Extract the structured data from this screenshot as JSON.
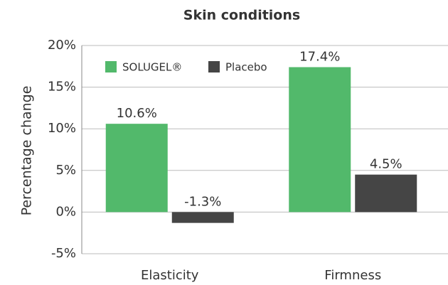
{
  "chart_data": {
    "type": "bar",
    "title": "Skin conditions",
    "y_label": "Percentage change",
    "categories": [
      "Elasticity",
      "Firmness"
    ],
    "series": [
      {
        "name": "SOLUGEL®",
        "color": "#52b96b",
        "values": [
          10.6,
          17.4
        ],
        "value_labels": [
          "10.6%",
          "17.4%"
        ]
      },
      {
        "name": "Placebo",
        "color": "#454545",
        "values": [
          -1.3,
          4.5
        ],
        "value_labels": [
          "-1.3%",
          "4.5%"
        ]
      }
    ],
    "ylim": [
      -5,
      20
    ],
    "yticks": [
      {
        "value": -5,
        "label": "-5%"
      },
      {
        "value": 0,
        "label": "0%"
      },
      {
        "value": 5,
        "label": "5%"
      },
      {
        "value": 10,
        "label": "10%"
      },
      {
        "value": 15,
        "label": "15%"
      },
      {
        "value": 20,
        "label": "20%"
      }
    ],
    "grid": true,
    "legend": "top-left"
  }
}
